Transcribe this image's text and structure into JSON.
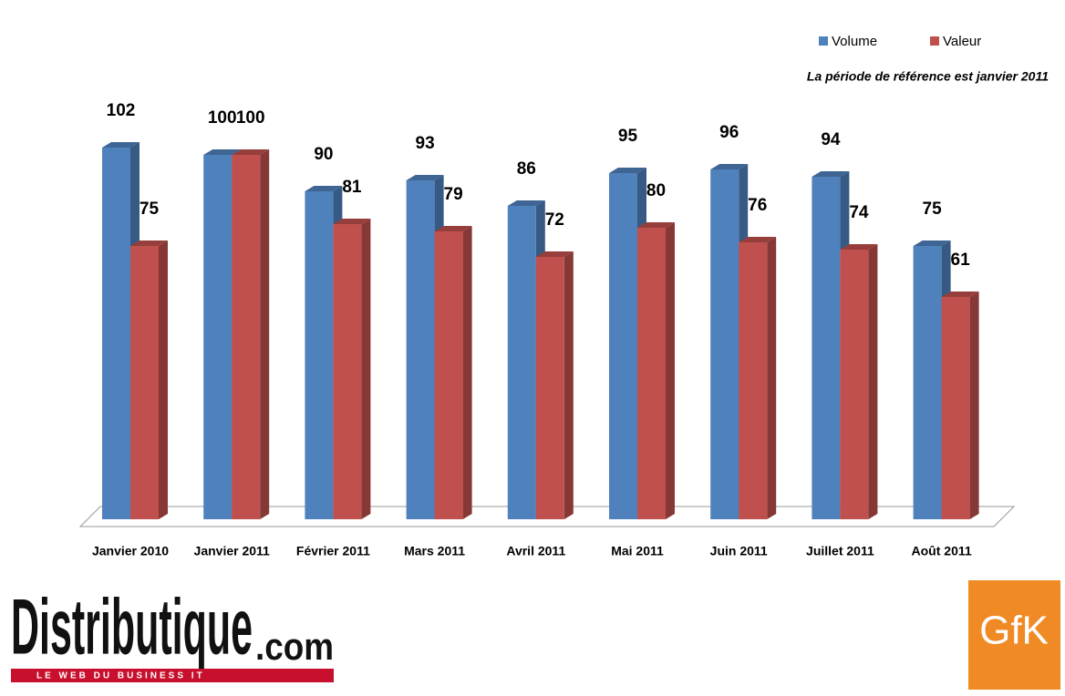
{
  "chart_data": {
    "type": "bar3d",
    "annotation": "La période de référence est janvier 2011",
    "categories": [
      "Janvier 2010",
      "Janvier 2011",
      "Février 2011",
      "Mars 2011",
      "Avril 2011",
      "Mai 2011",
      "Juin 2011",
      "Juillet 2011",
      "Août 2011"
    ],
    "series": [
      {
        "name": "Volume",
        "color": "#4f81bd",
        "values": [
          102,
          100,
          90,
          93,
          86,
          95,
          96,
          94,
          75
        ]
      },
      {
        "name": "Valeur",
        "color": "#c0504d",
        "values": [
          75,
          100,
          81,
          79,
          72,
          80,
          76,
          74,
          61
        ]
      }
    ],
    "legend": "top-right"
  },
  "logos": {
    "left": {
      "name": "Distributique",
      "suffix": ".com",
      "tagline": "LE WEB DU BUSINESS IT"
    },
    "right": "GfK"
  }
}
